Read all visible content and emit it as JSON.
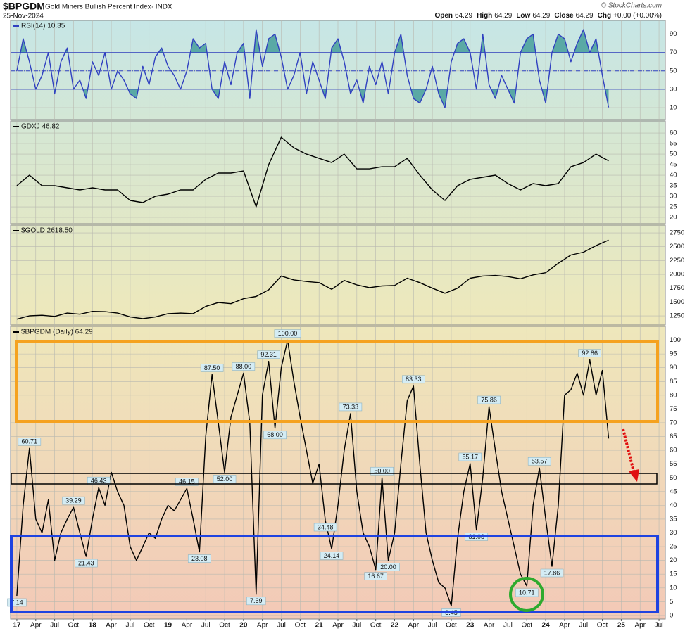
{
  "header": {
    "symbol": "$BPGDM",
    "title": "Gold Miners Bullish Percent Index· INDX",
    "date": "25-Nov-2024",
    "copyright": "© StockCharts.com",
    "quote": [
      {
        "label": "Open",
        "value": 64.29
      },
      {
        "label": "High",
        "value": 64.29
      },
      {
        "label": "Low",
        "value": 64.29
      },
      {
        "label": "Close",
        "value": 64.29
      },
      {
        "label": "Chg",
        "value": "+0.00 (+0.00%)"
      }
    ]
  },
  "chart_data": [
    {
      "type": "line",
      "title": "RSI(14) 10.35",
      "color": "#3040c0",
      "fill_color": "#5aa9a5",
      "ylim": [
        -3,
        105
      ],
      "yticks": [
        10,
        30,
        50,
        70,
        90
      ],
      "reference_lines": [
        30,
        50,
        70
      ],
      "x": [
        "2017-01",
        "2017-02",
        "2017-03",
        "2017-04",
        "2017-05",
        "2017-06",
        "2017-07",
        "2017-08",
        "2017-09",
        "2017-10",
        "2017-11",
        "2017-12",
        "2018-01",
        "2018-02",
        "2018-03",
        "2018-04",
        "2018-05",
        "2018-06",
        "2018-07",
        "2018-08",
        "2018-09",
        "2018-10",
        "2018-11",
        "2018-12",
        "2019-01",
        "2019-02",
        "2019-03",
        "2019-04",
        "2019-05",
        "2019-06",
        "2019-07",
        "2019-08",
        "2019-09",
        "2019-10",
        "2019-11",
        "2019-12",
        "2020-01",
        "2020-02",
        "2020-03",
        "2020-04",
        "2020-05",
        "2020-06",
        "2020-07",
        "2020-08",
        "2020-09",
        "2020-10",
        "2020-11",
        "2020-12",
        "2021-01",
        "2021-02",
        "2021-03",
        "2021-04",
        "2021-05",
        "2021-06",
        "2021-07",
        "2021-08",
        "2021-09",
        "2021-10",
        "2021-11",
        "2021-12",
        "2022-01",
        "2022-02",
        "2022-03",
        "2022-04",
        "2022-05",
        "2022-06",
        "2022-07",
        "2022-08",
        "2022-09",
        "2022-10",
        "2022-11",
        "2022-12",
        "2023-01",
        "2023-02",
        "2023-03",
        "2023-04",
        "2023-05",
        "2023-06",
        "2023-07",
        "2023-08",
        "2023-09",
        "2023-10",
        "2023-11",
        "2023-12",
        "2024-01",
        "2024-02",
        "2024-03",
        "2024-04",
        "2024-05",
        "2024-06",
        "2024-07",
        "2024-08",
        "2024-09",
        "2024-10",
        "2024-11"
      ],
      "values": [
        50,
        85,
        60,
        30,
        45,
        70,
        25,
        60,
        75,
        30,
        40,
        20,
        60,
        45,
        70,
        30,
        50,
        40,
        25,
        20,
        55,
        35,
        65,
        75,
        55,
        45,
        30,
        50,
        85,
        75,
        80,
        30,
        20,
        60,
        35,
        70,
        80,
        20,
        95,
        55,
        85,
        90,
        65,
        30,
        45,
        70,
        25,
        60,
        40,
        20,
        75,
        85,
        60,
        25,
        40,
        15,
        55,
        35,
        60,
        25,
        70,
        90,
        45,
        20,
        15,
        30,
        55,
        25,
        10,
        60,
        80,
        85,
        70,
        30,
        90,
        35,
        20,
        45,
        30,
        15,
        70,
        85,
        90,
        40,
        15,
        70,
        90,
        85,
        60,
        80,
        95,
        70,
        85,
        45,
        10.35
      ]
    },
    {
      "type": "line",
      "title": "GDXJ 46.82",
      "color": "#000000",
      "ylim": [
        17,
        65.7
      ],
      "yticks": [
        20,
        25,
        30,
        35,
        40,
        45,
        50,
        55,
        60
      ],
      "x": [
        "2017-01",
        "2017-03",
        "2017-05",
        "2017-07",
        "2017-09",
        "2017-11",
        "2018-01",
        "2018-03",
        "2018-05",
        "2018-07",
        "2018-09",
        "2018-11",
        "2019-01",
        "2019-03",
        "2019-05",
        "2019-07",
        "2019-09",
        "2019-11",
        "2020-01",
        "2020-03",
        "2020-05",
        "2020-07",
        "2020-09",
        "2020-11",
        "2021-01",
        "2021-03",
        "2021-05",
        "2021-07",
        "2021-09",
        "2021-11",
        "2022-01",
        "2022-03",
        "2022-05",
        "2022-07",
        "2022-09",
        "2022-11",
        "2023-01",
        "2023-03",
        "2023-05",
        "2023-07",
        "2023-09",
        "2023-11",
        "2024-01",
        "2024-03",
        "2024-05",
        "2024-07",
        "2024-09",
        "2024-11"
      ],
      "values": [
        35,
        40,
        35,
        35,
        34,
        33,
        34,
        33,
        33,
        28,
        27,
        30,
        31,
        33,
        33,
        38,
        41,
        41,
        42,
        25,
        45,
        58,
        53,
        50,
        48,
        46,
        50,
        43,
        43,
        44,
        44,
        48,
        40,
        33,
        28,
        35,
        38,
        39,
        40,
        36,
        33,
        36,
        35,
        36,
        44,
        46,
        50,
        46.82
      ]
    },
    {
      "type": "line",
      "title": "$GOLD 2618.50",
      "color": "#000000",
      "ylim": [
        1085,
        2890
      ],
      "yticks": [
        1250,
        1500,
        1750,
        2000,
        2250,
        2500,
        2750
      ],
      "x": [
        "2017-01",
        "2017-03",
        "2017-05",
        "2017-07",
        "2017-09",
        "2017-11",
        "2018-01",
        "2018-03",
        "2018-05",
        "2018-07",
        "2018-09",
        "2018-11",
        "2019-01",
        "2019-03",
        "2019-05",
        "2019-07",
        "2019-09",
        "2019-11",
        "2020-01",
        "2020-03",
        "2020-05",
        "2020-07",
        "2020-09",
        "2020-11",
        "2021-01",
        "2021-03",
        "2021-05",
        "2021-07",
        "2021-09",
        "2021-11",
        "2022-01",
        "2022-03",
        "2022-05",
        "2022-07",
        "2022-09",
        "2022-11",
        "2023-01",
        "2023-03",
        "2023-05",
        "2023-07",
        "2023-09",
        "2023-11",
        "2024-01",
        "2024-03",
        "2024-05",
        "2024-07",
        "2024-09",
        "2024-11"
      ],
      "values": [
        1190,
        1250,
        1260,
        1240,
        1300,
        1280,
        1330,
        1325,
        1300,
        1230,
        1200,
        1230,
        1290,
        1300,
        1290,
        1420,
        1490,
        1470,
        1560,
        1600,
        1720,
        1970,
        1900,
        1870,
        1850,
        1730,
        1890,
        1810,
        1760,
        1790,
        1800,
        1930,
        1850,
        1750,
        1660,
        1750,
        1930,
        1970,
        1980,
        1960,
        1920,
        1990,
        2030,
        2200,
        2350,
        2400,
        2520,
        2618.5
      ]
    },
    {
      "type": "line",
      "title": "$BPGDM (Daily) 64.29",
      "color": "#000000",
      "ylim": [
        -1.3,
        105
      ],
      "yticks": [
        0,
        5,
        10,
        15,
        20,
        25,
        30,
        35,
        40,
        45,
        50,
        55,
        60,
        65,
        70,
        75,
        80,
        85,
        90,
        95,
        100
      ],
      "xlim": [
        "2016-12",
        "2025-08"
      ],
      "xticks": [
        {
          "value": "2017-01",
          "label": "17"
        },
        {
          "value": "2017-04",
          "label": "Apr"
        },
        {
          "value": "2017-07",
          "label": "Jul"
        },
        {
          "value": "2017-10",
          "label": "Oct"
        },
        {
          "value": "2018-01",
          "label": "18"
        },
        {
          "value": "2018-04",
          "label": "Apr"
        },
        {
          "value": "2018-07",
          "label": "Jul"
        },
        {
          "value": "2018-10",
          "label": "Oct"
        },
        {
          "value": "2019-01",
          "label": "19"
        },
        {
          "value": "2019-04",
          "label": "Apr"
        },
        {
          "value": "2019-07",
          "label": "Jul"
        },
        {
          "value": "2019-10",
          "label": "Oct"
        },
        {
          "value": "2020-01",
          "label": "20"
        },
        {
          "value": "2020-04",
          "label": "Apr"
        },
        {
          "value": "2020-07",
          "label": "Jul"
        },
        {
          "value": "2020-10",
          "label": "Oct"
        },
        {
          "value": "2021-01",
          "label": "21"
        },
        {
          "value": "2021-04",
          "label": "Apr"
        },
        {
          "value": "2021-07",
          "label": "Jul"
        },
        {
          "value": "2021-10",
          "label": "Oct"
        },
        {
          "value": "2022-01",
          "label": "22"
        },
        {
          "value": "2022-04",
          "label": "Apr"
        },
        {
          "value": "2022-07",
          "label": "Jul"
        },
        {
          "value": "2022-10",
          "label": "Oct"
        },
        {
          "value": "2023-01",
          "label": "23"
        },
        {
          "value": "2023-04",
          "label": "Apr"
        },
        {
          "value": "2023-07",
          "label": "Jul"
        },
        {
          "value": "2023-10",
          "label": "Oct"
        },
        {
          "value": "2024-01",
          "label": "24"
        },
        {
          "value": "2024-04",
          "label": "Apr"
        },
        {
          "value": "2024-07",
          "label": "Jul"
        },
        {
          "value": "2024-10",
          "label": "Oct"
        },
        {
          "value": "2025-01",
          "label": "25"
        },
        {
          "value": "2025-04",
          "label": "Apr"
        },
        {
          "value": "2025-07",
          "label": "Jul"
        }
      ],
      "x": [
        "2017-01",
        "2017-02",
        "2017-03",
        "2017-04",
        "2017-05",
        "2017-06",
        "2017-07",
        "2017-08",
        "2017-09",
        "2017-10",
        "2017-11",
        "2017-12",
        "2018-01",
        "2018-02",
        "2018-03",
        "2018-04",
        "2018-05",
        "2018-06",
        "2018-07",
        "2018-08",
        "2018-09",
        "2018-10",
        "2018-11",
        "2018-12",
        "2019-01",
        "2019-02",
        "2019-03",
        "2019-04",
        "2019-05",
        "2019-06",
        "2019-07",
        "2019-08",
        "2019-09",
        "2019-10",
        "2019-11",
        "2019-12",
        "2020-01",
        "2020-02",
        "2020-03",
        "2020-04",
        "2020-05",
        "2020-06",
        "2020-07",
        "2020-08",
        "2020-09",
        "2020-10",
        "2020-11",
        "2020-12",
        "2021-01",
        "2021-02",
        "2021-03",
        "2021-04",
        "2021-05",
        "2021-06",
        "2021-07",
        "2021-08",
        "2021-09",
        "2021-10",
        "2021-11",
        "2021-12",
        "2022-01",
        "2022-02",
        "2022-03",
        "2022-04",
        "2022-05",
        "2022-06",
        "2022-07",
        "2022-08",
        "2022-09",
        "2022-10",
        "2022-11",
        "2022-12",
        "2023-01",
        "2023-02",
        "2023-03",
        "2023-04",
        "2023-05",
        "2023-06",
        "2023-07",
        "2023-08",
        "2023-09",
        "2023-10",
        "2023-11",
        "2023-12",
        "2024-01",
        "2024-02",
        "2024-03",
        "2024-04",
        "2024-05",
        "2024-06",
        "2024-07",
        "2024-08",
        "2024-09",
        "2024-10",
        "2024-11"
      ],
      "values": [
        7.14,
        40,
        60.71,
        35,
        30,
        42,
        20,
        30,
        35,
        39.29,
        30,
        21.43,
        35,
        46.43,
        40,
        52,
        45,
        40,
        25,
        20,
        25,
        30,
        28,
        35,
        40,
        38,
        42,
        46.15,
        35,
        23.08,
        65,
        87.5,
        70,
        52,
        72,
        80,
        88,
        70,
        7.69,
        80,
        92.31,
        68,
        90,
        100,
        85,
        72,
        60,
        48,
        55,
        34.48,
        24.14,
        40,
        60,
        73.33,
        45,
        30,
        25,
        16.67,
        50,
        20,
        30,
        55,
        78,
        83.33,
        55,
        30,
        20,
        12,
        10,
        3.45,
        28,
        45,
        55.17,
        31.03,
        50,
        75.86,
        60,
        45,
        35,
        25,
        15,
        10.71,
        40,
        53.57,
        35,
        17.86,
        40,
        80,
        82,
        88,
        80,
        92.86,
        80,
        89,
        64.29
      ],
      "value_labels": [
        "7.14",
        null,
        "60.71",
        null,
        null,
        null,
        null,
        null,
        null,
        "39.29",
        null,
        "21.43",
        null,
        "46.43",
        null,
        null,
        null,
        null,
        null,
        null,
        null,
        null,
        null,
        null,
        null,
        null,
        null,
        "46.15",
        null,
        "23.08",
        null,
        "87.50",
        null,
        "52.00",
        null,
        null,
        "88.00",
        null,
        "7.69",
        null,
        "92.31",
        "68.00",
        null,
        "100.00",
        null,
        null,
        null,
        null,
        null,
        "34.48",
        "24.14",
        null,
        null,
        "73.33",
        null,
        null,
        null,
        "16.67",
        "50.00",
        "20.00",
        null,
        null,
        null,
        "83.33",
        null,
        null,
        null,
        null,
        null,
        "3.45",
        null,
        null,
        "55.17",
        "31.03",
        null,
        "75.86",
        null,
        null,
        null,
        null,
        null,
        "10.71",
        null,
        "53.57",
        null,
        "17.86",
        null,
        null,
        null,
        null,
        null,
        "92.86",
        null,
        null,
        null
      ]
    }
  ]
}
